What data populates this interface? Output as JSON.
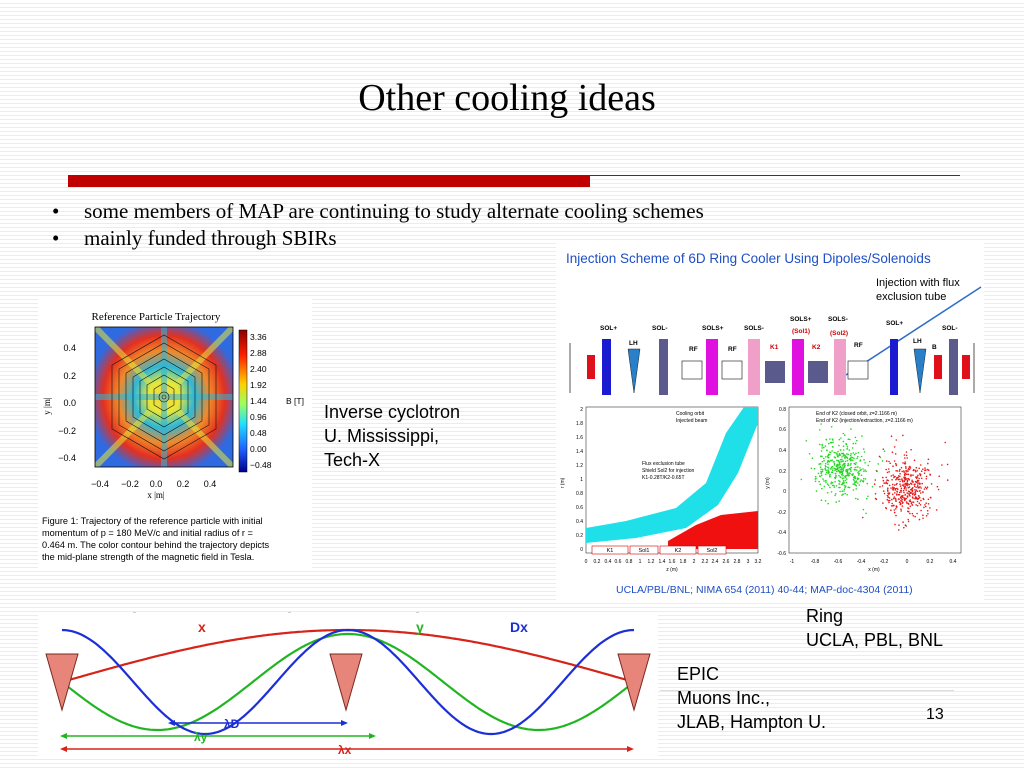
{
  "slide": {
    "title": "Other cooling ideas",
    "page_number": "13",
    "bullets": [
      "some members of MAP are continuing to study alternate cooling schemes",
      "mainly funded through SBIRs"
    ]
  },
  "captions": {
    "cyclotron": [
      "Inverse cyclotron",
      "U. Mississippi,",
      "Tech-X"
    ],
    "ring": [
      "Ring",
      "UCLA, PBL, BNL"
    ],
    "epic": [
      "EPIC",
      "Muons Inc.,",
      "JLAB, Hampton U."
    ]
  },
  "cyclotron_figure": {
    "plot_title": "Reference Particle Trajectory",
    "ylabel": "y |m|",
    "xlabel": "x |m|",
    "y_ticks": [
      "0.4",
      "0.2",
      "0.0",
      "−0.2",
      "−0.4"
    ],
    "x_ticks": [
      "−0.4",
      "−0.2",
      "0.0",
      "0.2",
      "0.4"
    ],
    "colorbar_label": "B [T]",
    "colorbar_ticks": [
      "3.36",
      "2.88",
      "2.40",
      "1.92",
      "1.44",
      "0.96",
      "0.48",
      "0.00",
      "−0.48"
    ],
    "caption_lines": [
      "Figure 1:  Trajectory of the reference particle with initial",
      "momentum of p = 180 MeV/c and initial radius of r =",
      "0.464 m.  The color contour behind the trajectory depicts",
      "the mid-plane strength of the magnetic field in Tesla."
    ]
  },
  "ring_figure": {
    "title": "Injection Scheme of 6D Ring Cooler Using Dipoles/Solenoids",
    "annotation": [
      "Injection with flux",
      "exclusion tube"
    ],
    "element_labels": [
      "SOL+",
      "SOL-",
      "SOLS+",
      "SOLS-",
      "SOLS+",
      "SOLS-",
      "SOL+",
      "SOL-"
    ],
    "element_sublabels": [
      "(Sol1)",
      "(Sol2)"
    ],
    "inner_labels": [
      "LH",
      "RF",
      "RF",
      "K1",
      "K2",
      "RF",
      "LH",
      "B"
    ],
    "left_plot": {
      "legend": [
        "Cooling orbit",
        "Injected beam"
      ],
      "note": [
        "Flux exclusion tube",
        "Shield Sol2 for injection",
        "K1-0.28T/K2-0.65T"
      ],
      "ylabel": "r (m)",
      "xlabel": "z (m)",
      "y_ticks": [
        "2",
        "1.8",
        "1.6",
        "1.4",
        "1.2",
        "1",
        "0.8",
        "0.6",
        "0.4",
        "0.2",
        "0"
      ],
      "x_ticks": [
        "0",
        "0.2",
        "0.4",
        "0.6",
        "0.8",
        "1",
        "1.2",
        "1.4",
        "1.6",
        "1.8",
        "2",
        "2.2",
        "2.4",
        "2.6",
        "2.8",
        "3",
        "3.2"
      ],
      "segments": [
        "K1",
        "Sol1",
        "K2",
        "Sol2"
      ]
    },
    "right_plot": {
      "legend": [
        "End of K2 (closed orbit, z=2.1166 m)",
        "End of K2 (injection/extraction, z=2.1166 m)"
      ],
      "ylabel": "y (m)",
      "xlabel": "x (m)",
      "y_ticks": [
        "0.8",
        "0.6",
        "0.4",
        "0.2",
        "0",
        "-0.2",
        "-0.4",
        "-0.6"
      ],
      "x_ticks": [
        "-1",
        "-0.8",
        "-0.6",
        "-0.4",
        "-0.2",
        "0",
        "0.2",
        "0.4"
      ]
    },
    "reference": "UCLA/PBL/BNL; NIMA 654 (2011) 40-44; MAP-doc-4304 (2011)"
  },
  "epic_figure": {
    "curve_labels": [
      "x",
      "y",
      "Dx"
    ],
    "wavelengths": [
      "λD",
      "λy",
      "λx"
    ],
    "colors": {
      "x": "#d62418",
      "y": "#22b522",
      "D": "#1c2fd6",
      "wedge": "#e8857a"
    }
  },
  "colors": {
    "accent": "#c00000",
    "ring_title": "#1f4fc4"
  }
}
